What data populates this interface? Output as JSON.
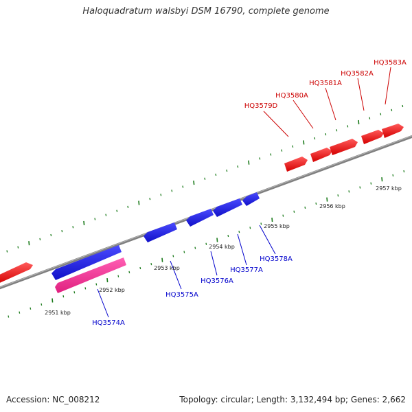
{
  "title": "Haloquadratum walsbyi DSM 16790, complete genome",
  "footer": {
    "accession": "Accession: NC_008212",
    "summary": "Topology: circular; Length: 3,132,494 bp; Genes: 2,662"
  },
  "colors": {
    "forward_gene": "#ff0000",
    "reverse_gene": "#1f1fff",
    "rna_gene": "#ff3399",
    "backbone": "#808080",
    "tick": "#1a7a1a",
    "forward_label": "#cc0000",
    "reverse_label": "#0000cc"
  },
  "scale_labels": [
    {
      "text": "2951 kbp",
      "kbp": 2951
    },
    {
      "text": "2952 kbp",
      "kbp": 2952
    },
    {
      "text": "2953 kbp",
      "kbp": 2953
    },
    {
      "text": "2954 kbp",
      "kbp": 2954
    },
    {
      "text": "2955 kbp",
      "kbp": 2955
    },
    {
      "text": "2956 kbp",
      "kbp": 2956
    },
    {
      "text": "2957 kbp",
      "kbp": 2957
    }
  ],
  "forward_gene_labels": [
    "HQ3579D",
    "HQ3580A",
    "HQ3581A",
    "HQ3582A",
    "HQ3583A"
  ],
  "reverse_gene_labels": [
    "HQ3574A",
    "HQ3575A",
    "HQ3576A",
    "HQ3577A",
    "HQ3578A"
  ]
}
